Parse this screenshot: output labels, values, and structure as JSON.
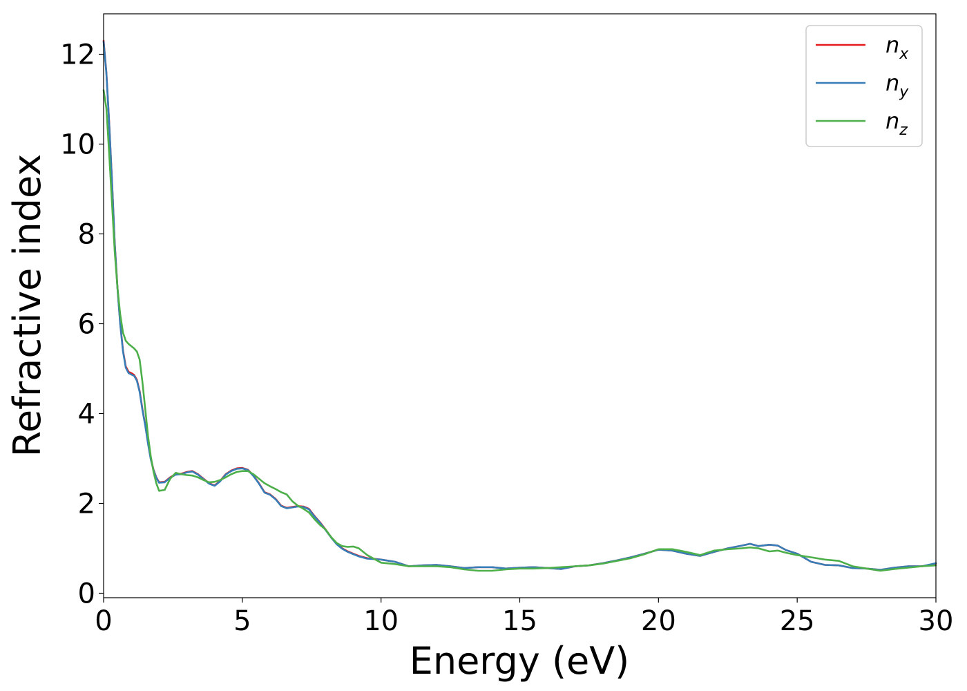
{
  "chart_data": {
    "type": "line",
    "xlabel": "Energy (eV)",
    "ylabel": "Refractive index",
    "xlim": [
      0,
      30
    ],
    "ylim": [
      -0.1,
      12.9
    ],
    "xticks": [
      "0",
      "5",
      "10",
      "15",
      "20",
      "25",
      "30"
    ],
    "yticks": [
      "0",
      "2",
      "4",
      "6",
      "8",
      "10",
      "12"
    ],
    "grid": false,
    "legend_position": "top-right",
    "series": [
      {
        "name": "n",
        "subscript": "x",
        "color": "#e41a1c",
        "x": [
          0.0,
          0.1,
          0.2,
          0.3,
          0.4,
          0.5,
          0.6,
          0.7,
          0.8,
          0.9,
          1.0,
          1.1,
          1.2,
          1.3,
          1.4,
          1.5,
          1.6,
          1.7,
          1.8,
          1.9,
          2.0,
          2.2,
          2.4,
          2.6,
          2.8,
          3.0,
          3.2,
          3.4,
          3.6,
          3.8,
          4.0,
          4.2,
          4.4,
          4.6,
          4.8,
          5.0,
          5.2,
          5.4,
          5.6,
          5.8,
          6.0,
          6.2,
          6.4,
          6.6,
          6.8,
          7.0,
          7.2,
          7.4,
          7.6,
          7.8,
          8.0,
          8.2,
          8.4,
          8.6,
          8.8,
          9.0,
          9.2,
          9.5,
          10.0,
          10.5,
          11.0,
          11.5,
          12.0,
          12.5,
          13.0,
          13.5,
          14.0,
          14.5,
          15.0,
          15.5,
          16.0,
          16.5,
          17.0,
          17.5,
          18.0,
          18.5,
          19.0,
          19.5,
          20.0,
          20.5,
          21.0,
          21.5,
          22.0,
          22.5,
          23.0,
          23.3,
          23.6,
          24.0,
          24.3,
          24.6,
          25.0,
          25.5,
          26.0,
          26.5,
          27.0,
          27.5,
          28.0,
          28.5,
          29.0,
          29.5,
          30.0
        ],
        "y": [
          12.3,
          11.6,
          10.5,
          9.2,
          7.8,
          6.8,
          6.0,
          5.4,
          5.05,
          4.93,
          4.9,
          4.86,
          4.75,
          4.5,
          4.1,
          3.75,
          3.35,
          3.0,
          2.75,
          2.58,
          2.47,
          2.48,
          2.58,
          2.65,
          2.66,
          2.7,
          2.72,
          2.65,
          2.55,
          2.45,
          2.4,
          2.5,
          2.65,
          2.73,
          2.78,
          2.79,
          2.75,
          2.62,
          2.45,
          2.25,
          2.2,
          2.1,
          1.95,
          1.9,
          1.92,
          1.94,
          1.93,
          1.88,
          1.72,
          1.58,
          1.42,
          1.25,
          1.1,
          1.0,
          0.93,
          0.88,
          0.83,
          0.78,
          0.75,
          0.7,
          0.6,
          0.62,
          0.63,
          0.6,
          0.56,
          0.58,
          0.58,
          0.55,
          0.57,
          0.58,
          0.56,
          0.54,
          0.6,
          0.62,
          0.67,
          0.73,
          0.8,
          0.88,
          0.97,
          0.95,
          0.88,
          0.83,
          0.92,
          1.0,
          1.06,
          1.1,
          1.05,
          1.08,
          1.06,
          0.96,
          0.88,
          0.7,
          0.63,
          0.62,
          0.56,
          0.55,
          0.52,
          0.57,
          0.6,
          0.6,
          0.66
        ]
      },
      {
        "name": "n",
        "subscript": "y",
        "color": "#377eb8",
        "x": [
          0.0,
          0.1,
          0.2,
          0.3,
          0.4,
          0.5,
          0.6,
          0.7,
          0.8,
          0.9,
          1.0,
          1.1,
          1.2,
          1.3,
          1.4,
          1.5,
          1.6,
          1.7,
          1.8,
          1.9,
          2.0,
          2.2,
          2.4,
          2.6,
          2.8,
          3.0,
          3.2,
          3.4,
          3.6,
          3.8,
          4.0,
          4.2,
          4.4,
          4.6,
          4.8,
          5.0,
          5.2,
          5.4,
          5.6,
          5.8,
          6.0,
          6.2,
          6.4,
          6.6,
          6.8,
          7.0,
          7.2,
          7.4,
          7.6,
          7.8,
          8.0,
          8.2,
          8.4,
          8.6,
          8.8,
          9.0,
          9.2,
          9.5,
          10.0,
          10.5,
          11.0,
          11.5,
          12.0,
          12.5,
          13.0,
          13.5,
          14.0,
          14.5,
          15.0,
          15.5,
          16.0,
          16.5,
          17.0,
          17.5,
          18.0,
          18.5,
          19.0,
          19.5,
          20.0,
          20.5,
          21.0,
          21.5,
          22.0,
          22.5,
          23.0,
          23.3,
          23.6,
          24.0,
          24.3,
          24.6,
          25.0,
          25.5,
          26.0,
          26.5,
          27.0,
          27.5,
          28.0,
          28.5,
          29.0,
          29.5,
          30.0
        ],
        "y": [
          12.28,
          11.58,
          10.48,
          9.18,
          7.78,
          6.78,
          5.98,
          5.38,
          5.02,
          4.9,
          4.87,
          4.84,
          4.73,
          4.48,
          4.08,
          3.73,
          3.33,
          2.98,
          2.74,
          2.57,
          2.46,
          2.47,
          2.57,
          2.64,
          2.65,
          2.69,
          2.71,
          2.64,
          2.54,
          2.44,
          2.39,
          2.49,
          2.64,
          2.72,
          2.77,
          2.78,
          2.74,
          2.61,
          2.44,
          2.24,
          2.19,
          2.09,
          1.94,
          1.89,
          1.91,
          1.93,
          1.92,
          1.87,
          1.71,
          1.57,
          1.41,
          1.24,
          1.09,
          0.99,
          0.92,
          0.87,
          0.82,
          0.77,
          0.75,
          0.7,
          0.6,
          0.62,
          0.63,
          0.6,
          0.56,
          0.58,
          0.58,
          0.55,
          0.57,
          0.58,
          0.56,
          0.54,
          0.6,
          0.62,
          0.67,
          0.73,
          0.8,
          0.88,
          0.97,
          0.95,
          0.88,
          0.83,
          0.92,
          1.0,
          1.06,
          1.1,
          1.05,
          1.08,
          1.06,
          0.96,
          0.88,
          0.7,
          0.63,
          0.62,
          0.56,
          0.55,
          0.52,
          0.57,
          0.6,
          0.6,
          0.67
        ]
      },
      {
        "name": "n",
        "subscript": "z",
        "color": "#4daf4a",
        "x": [
          0.0,
          0.1,
          0.2,
          0.3,
          0.4,
          0.5,
          0.6,
          0.7,
          0.8,
          0.9,
          1.0,
          1.1,
          1.2,
          1.3,
          1.4,
          1.5,
          1.6,
          1.7,
          1.8,
          1.9,
          2.0,
          2.2,
          2.4,
          2.6,
          2.8,
          3.0,
          3.2,
          3.4,
          3.6,
          3.8,
          4.0,
          4.2,
          4.4,
          4.6,
          4.8,
          5.0,
          5.2,
          5.4,
          5.6,
          5.8,
          6.0,
          6.2,
          6.4,
          6.6,
          6.8,
          7.0,
          7.2,
          7.4,
          7.6,
          7.8,
          8.0,
          8.2,
          8.4,
          8.6,
          8.8,
          9.0,
          9.2,
          9.5,
          10.0,
          10.5,
          11.0,
          11.5,
          12.0,
          12.5,
          13.0,
          13.5,
          14.0,
          14.5,
          15.0,
          15.5,
          16.0,
          16.5,
          17.0,
          17.5,
          18.0,
          18.5,
          19.0,
          19.5,
          20.0,
          20.5,
          21.0,
          21.5,
          22.0,
          22.5,
          23.0,
          23.3,
          23.6,
          24.0,
          24.3,
          24.6,
          25.0,
          25.5,
          26.0,
          26.5,
          27.0,
          27.5,
          28.0,
          28.5,
          29.0,
          29.5,
          30.0
        ],
        "y": [
          11.2,
          10.8,
          9.8,
          8.7,
          7.6,
          6.8,
          6.2,
          5.8,
          5.62,
          5.55,
          5.5,
          5.45,
          5.38,
          5.2,
          4.7,
          4.1,
          3.5,
          3.05,
          2.7,
          2.45,
          2.28,
          2.3,
          2.55,
          2.68,
          2.65,
          2.63,
          2.62,
          2.58,
          2.52,
          2.47,
          2.48,
          2.52,
          2.58,
          2.65,
          2.7,
          2.72,
          2.72,
          2.65,
          2.55,
          2.45,
          2.38,
          2.32,
          2.25,
          2.2,
          2.05,
          1.95,
          1.88,
          1.8,
          1.65,
          1.52,
          1.42,
          1.25,
          1.12,
          1.05,
          1.03,
          1.04,
          1.0,
          0.85,
          0.68,
          0.65,
          0.6,
          0.6,
          0.6,
          0.58,
          0.53,
          0.5,
          0.5,
          0.53,
          0.55,
          0.55,
          0.56,
          0.58,
          0.6,
          0.62,
          0.66,
          0.72,
          0.78,
          0.87,
          0.98,
          0.98,
          0.92,
          0.85,
          0.95,
          0.98,
          1.0,
          1.02,
          1.0,
          0.93,
          0.95,
          0.9,
          0.85,
          0.8,
          0.75,
          0.72,
          0.6,
          0.55,
          0.5,
          0.54,
          0.57,
          0.6,
          0.62
        ]
      }
    ]
  }
}
